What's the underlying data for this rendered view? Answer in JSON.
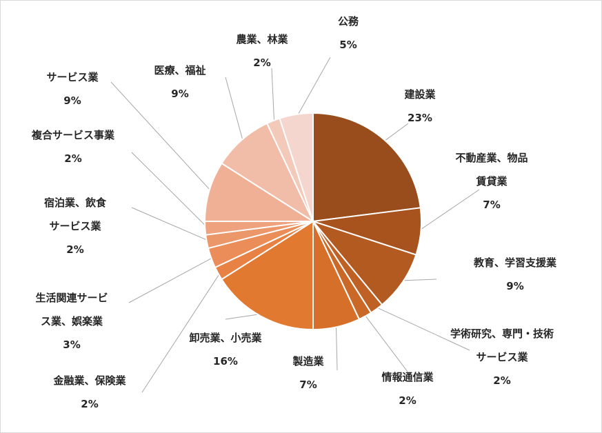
{
  "chart_data": {
    "type": "pie",
    "title": "",
    "start": "12 o'clock, clockwise",
    "slices": [
      {
        "name": "建設業",
        "lines": [
          "建設業"
        ],
        "value": 23,
        "pct": "23%",
        "color": "#9a4d1c"
      },
      {
        "name": "不動産業、物品賃貸業",
        "lines": [
          "不動産業、物品",
          "賃貸業"
        ],
        "value": 7,
        "pct": "7%",
        "color": "#a8531e"
      },
      {
        "name": "教育、学習支援業",
        "lines": [
          "教育、学習支援業"
        ],
        "value": 9,
        "pct": "9%",
        "color": "#b35a21"
      },
      {
        "name": "学術研究、専門・技術サービス業",
        "lines": [
          "学術研究、専門・技術",
          "サービス業"
        ],
        "value": 2,
        "pct": "2%",
        "color": "#bf6124"
      },
      {
        "name": "情報通信業",
        "lines": [
          "情報通信業"
        ],
        "value": 2,
        "pct": "2%",
        "color": "#ca6827"
      },
      {
        "name": "製造業",
        "lines": [
          "製造業"
        ],
        "value": 7,
        "pct": "7%",
        "color": "#d66f2a"
      },
      {
        "name": "卸売業、小売業",
        "lines": [
          "卸売業、小売業"
        ],
        "value": 16,
        "pct": "16%",
        "color": "#e27930"
      },
      {
        "name": "金融業、保険業",
        "lines": [
          "金融業、保険業"
        ],
        "value": 2,
        "pct": "2%",
        "color": "#e88244"
      },
      {
        "name": "生活関連サービス業、娯楽業",
        "lines": [
          "生活関連サービ",
          "ス業、娯楽業"
        ],
        "value": 3,
        "pct": "3%",
        "color": "#eb8d58"
      },
      {
        "name": "宿泊業、飲食サービス業",
        "lines": [
          "宿泊業、飲食",
          "サービス業"
        ],
        "value": 2,
        "pct": "2%",
        "color": "#ec976a"
      },
      {
        "name": "複合サービス事業",
        "lines": [
          "複合サービス事業"
        ],
        "value": 2,
        "pct": "2%",
        "color": "#eea37e"
      },
      {
        "name": "サービス業",
        "lines": [
          "サービス業"
        ],
        "value": 9,
        "pct": "9%",
        "color": "#efb095"
      },
      {
        "name": "医療、福祉",
        "lines": [
          "医療、福祉"
        ],
        "value": 9,
        "pct": "9%",
        "color": "#f1bda8"
      },
      {
        "name": "農業、林業",
        "lines": [
          "農業、林業"
        ],
        "value": 2,
        "pct": "2%",
        "color": "#f3c9ba"
      },
      {
        "name": "公務",
        "lines": [
          "公務"
        ],
        "value": 5,
        "pct": "5%",
        "color": "#f5d6ce"
      }
    ]
  }
}
